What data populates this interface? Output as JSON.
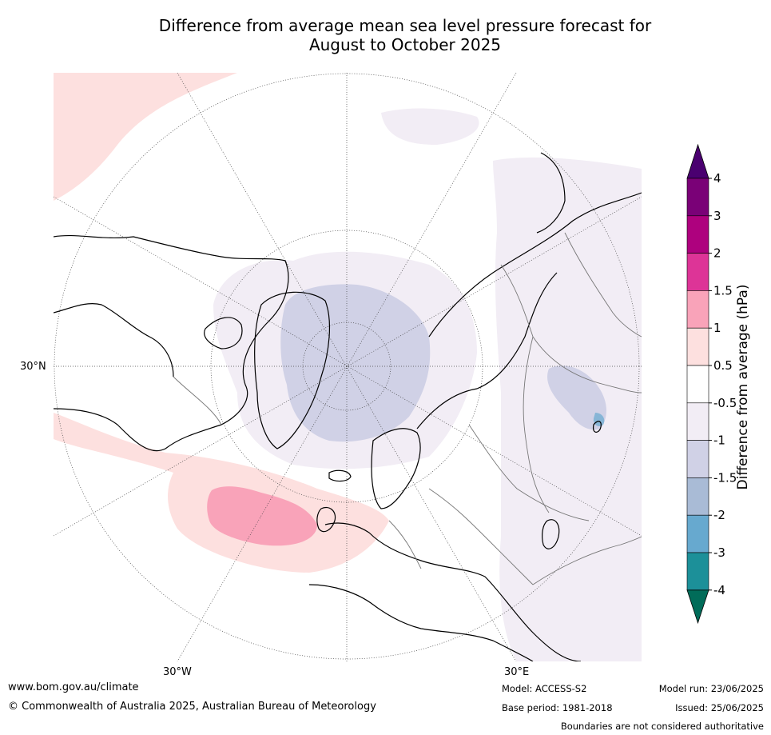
{
  "title": {
    "line1": "Difference from average mean sea level pressure forecast for",
    "line2": "August to October 2025"
  },
  "map": {
    "projection": "north-polar-stereographic",
    "graticule_labels": {
      "lat_30n": "30°N",
      "lon_30w": "30°W",
      "lon_30e": "30°E"
    },
    "anomaly_regions": [
      {
        "region": "north-atlantic",
        "category": "1 to 1.5",
        "color": "#f9a3b9"
      },
      {
        "region": "north-atlantic-surround",
        "category": "0.5 to 1",
        "color": "#fde0df"
      },
      {
        "region": "north-pacific-west",
        "category": "0.5 to 1",
        "color": "#fde0df"
      },
      {
        "region": "arctic-ocean",
        "category": "-1.5 to -1",
        "color": "#d0d1e6"
      },
      {
        "region": "central-asia",
        "category": "-1.5 to -1",
        "color": "#d0d1e6"
      },
      {
        "region": "arctic-surround",
        "category": "-1 to -0.5",
        "color": "#f2edf5"
      },
      {
        "region": "eurasia-east",
        "category": "-1 to -0.5",
        "color": "#f2edf5"
      }
    ]
  },
  "colorbar": {
    "label": "Difference from average (hPa)",
    "ticks": [
      "4",
      "3",
      "2",
      "1.5",
      "1",
      "0.5",
      "-0.5",
      "-1",
      "-1.5",
      "-2",
      "-3",
      "-4"
    ],
    "colors": [
      "#4a0070",
      "#7a0177",
      "#ae017e",
      "#dd3497",
      "#f9a3b9",
      "#fde0df",
      "#ffffff",
      "#f2edf5",
      "#d0d1e6",
      "#a9bbd6",
      "#67a9cf",
      "#1c9099",
      "#016c59"
    ]
  },
  "footer": {
    "website": "www.bom.gov.au/climate",
    "copyright": "© Commonwealth of Australia 2025, Australian Bureau of Meteorology",
    "model": "Model: ACCESS-S2",
    "base_period": "Base period: 1981-2018",
    "model_run": "Model run: 23/06/2025",
    "issued": "Issued: 25/06/2025",
    "disclaimer": "Boundaries are not considered authoritative"
  }
}
